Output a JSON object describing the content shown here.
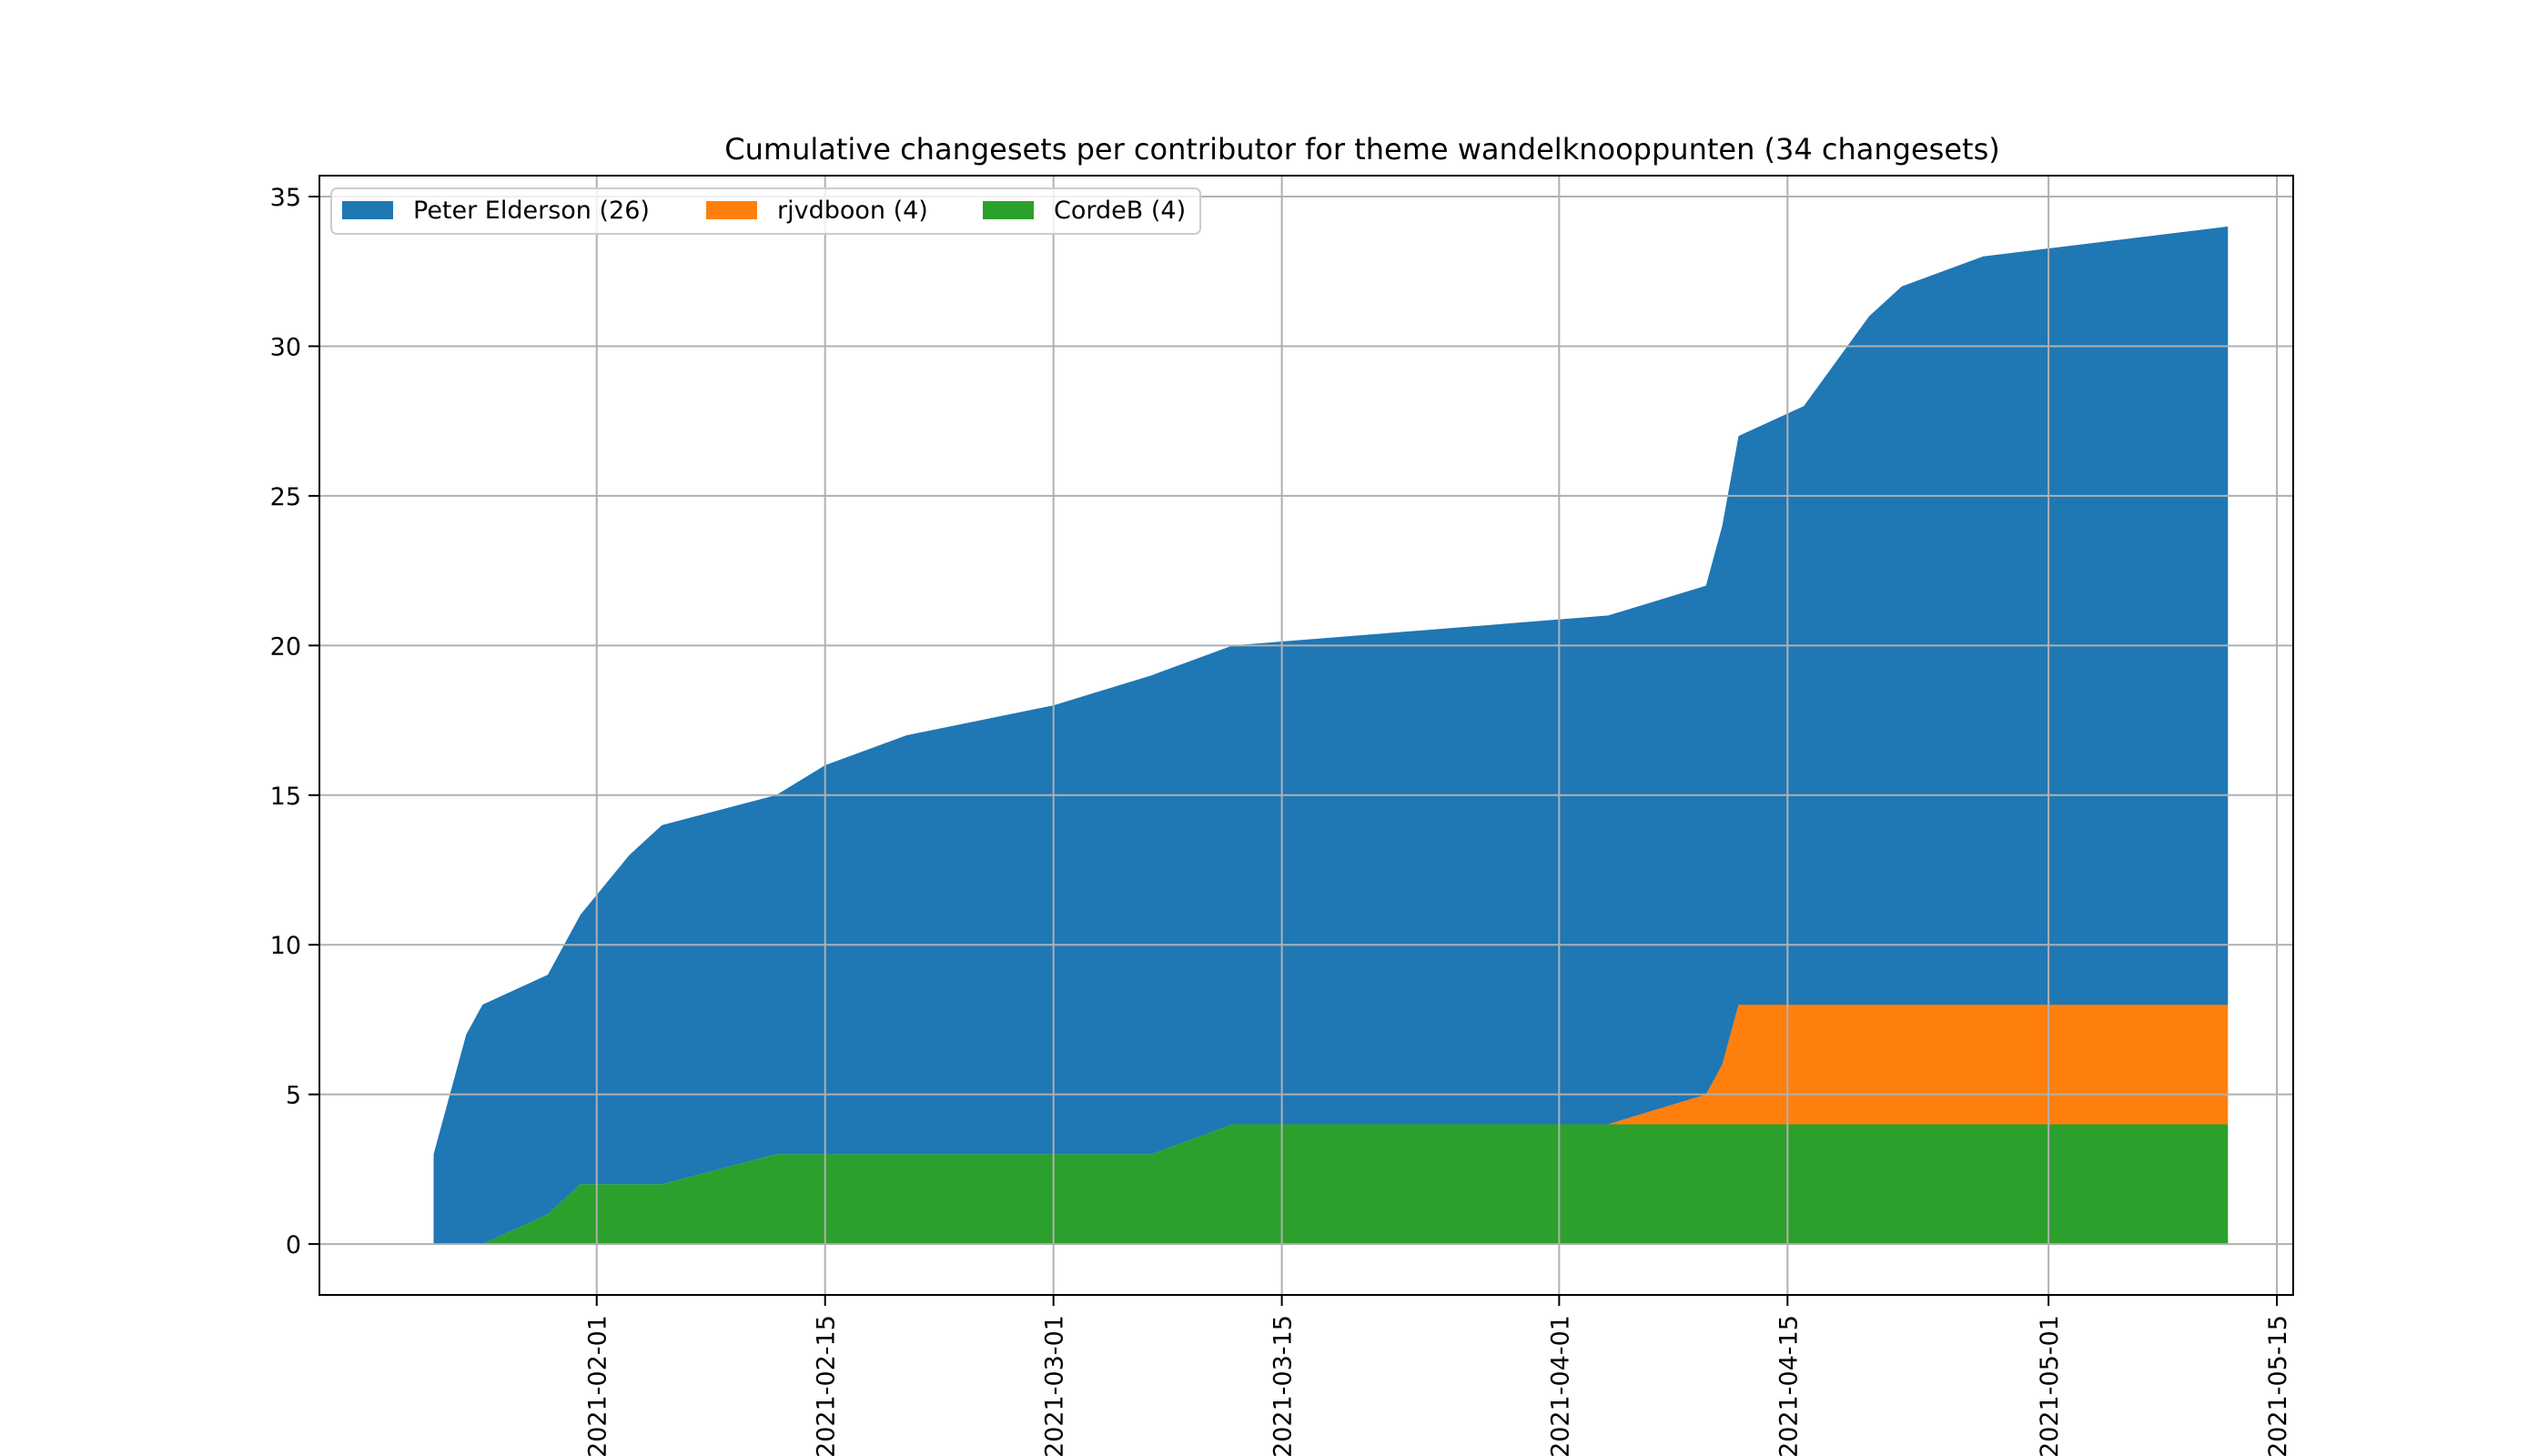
{
  "chart_data": {
    "type": "area",
    "stacked": true,
    "title": "Cumulative changesets per contributor for theme wandelknooppunten (34 changesets)",
    "xlabel": "",
    "ylabel": "",
    "grid": true,
    "legend_position": "top-left",
    "xlim": [
      "2021-01-15",
      "2021-05-16"
    ],
    "ylim": [
      -1.7,
      35.7
    ],
    "x_ticks": [
      "2021-02-01",
      "2021-02-15",
      "2021-03-01",
      "2021-03-15",
      "2021-04-01",
      "2021-04-15",
      "2021-05-01",
      "2021-05-15"
    ],
    "y_ticks": [
      0,
      5,
      10,
      15,
      20,
      25,
      30,
      35
    ],
    "x": [
      "2021-01-22",
      "2021-01-24",
      "2021-01-25",
      "2021-01-29",
      "2021-01-31",
      "2021-02-03",
      "2021-02-05",
      "2021-02-12",
      "2021-02-15",
      "2021-02-20",
      "2021-03-01",
      "2021-03-07",
      "2021-03-12",
      "2021-04-04",
      "2021-04-10",
      "2021-04-11",
      "2021-04-12",
      "2021-04-16",
      "2021-04-20",
      "2021-04-22",
      "2021-04-27",
      "2021-05-12"
    ],
    "series": [
      {
        "name": "CordeB (4)",
        "color": "#2ca02c",
        "values": [
          0,
          0,
          0,
          1,
          2,
          2,
          2,
          3,
          3,
          3,
          3,
          3,
          4,
          4,
          4,
          4,
          4,
          4,
          4,
          4,
          4,
          4
        ]
      },
      {
        "name": "rjvdboon (4)",
        "color": "#ff7f0e",
        "values": [
          0,
          0,
          0,
          0,
          0,
          0,
          0,
          0,
          0,
          0,
          0,
          0,
          0,
          0,
          1,
          2,
          4,
          4,
          4,
          4,
          4,
          4
        ]
      },
      {
        "name": "Peter Elderson (26)",
        "color": "#1f77b4",
        "values": [
          3,
          7,
          8,
          8,
          9,
          11,
          12,
          12,
          13,
          14,
          15,
          16,
          16,
          17,
          17,
          18,
          19,
          20,
          23,
          24,
          25,
          26
        ]
      }
    ],
    "legend_order": [
      "Peter Elderson (26)",
      "rjvdboon (4)",
      "CordeB (4)"
    ]
  }
}
